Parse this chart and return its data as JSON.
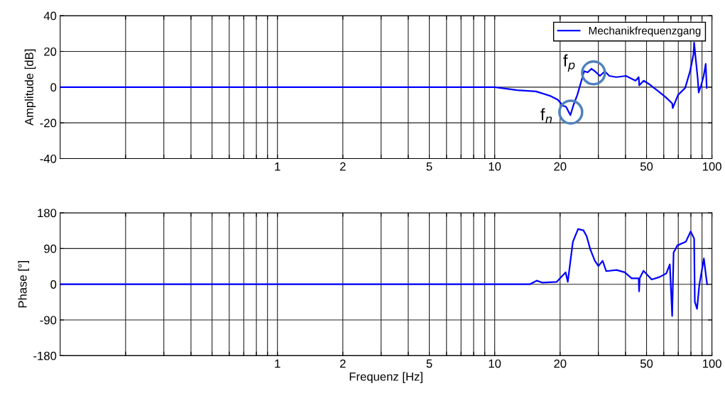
{
  "chart_data": [
    {
      "type": "line",
      "ylabel": "Amplitude [dB]",
      "legend": "top right",
      "grid": true,
      "log": "x",
      "xlim": [
        0.1,
        100
      ],
      "ylim": [
        -40,
        40
      ],
      "yticks": [
        -40,
        -20,
        0,
        20,
        40
      ],
      "xticks": [
        {
          "value": 0.2,
          "label": null
        },
        {
          "value": 0.3,
          "label": null
        },
        {
          "value": 0.4,
          "label": null
        },
        {
          "value": 0.5,
          "label": null
        },
        {
          "value": 0.6,
          "label": null
        },
        {
          "value": 0.7,
          "label": null
        },
        {
          "value": 0.8,
          "label": null
        },
        {
          "value": 0.9,
          "label": null
        },
        1,
        2,
        {
          "value": 3,
          "label": null
        },
        {
          "value": 4,
          "label": null
        },
        5,
        {
          "value": 6,
          "label": null
        },
        {
          "value": 7,
          "label": null
        },
        {
          "value": 8,
          "label": null
        },
        {
          "value": 9,
          "label": null
        },
        10,
        20,
        {
          "value": 30,
          "label": null
        },
        {
          "value": 40,
          "label": null
        },
        50,
        {
          "value": 60,
          "label": null
        },
        {
          "value": 70,
          "label": null
        },
        {
          "value": 80,
          "label": null
        },
        {
          "value": 90,
          "label": null
        },
        100
      ],
      "annotations": [
        {
          "text": "f$_{n}$",
          "x": 22.4,
          "y": -14
        },
        {
          "text": "f$_{p}$",
          "x": 28.5,
          "y": 8
        }
      ],
      "series": [
        {
          "name": "Mechanikfrequenzgang",
          "color": "#0000ff",
          "x": [
            0.1,
            0.5,
            1,
            2,
            5,
            10,
            12.7,
            15.5,
            18.1,
            19.5,
            20.6,
            21.3,
            22.3,
            23.1,
            24,
            24.9,
            25.8,
            26.8,
            27.9,
            28.9,
            30.5,
            32.1,
            33.7,
            36.3,
            40.2,
            44.5,
            46,
            46.3,
            48.5,
            51.5,
            56.8,
            61.3,
            65.6,
            66,
            69.8,
            75.3,
            79.3,
            82.2,
            82.8,
            84,
            86,
            86.9,
            89.1,
            91.6,
            93.6,
            94.6
          ],
          "values": [
            0,
            0,
            0,
            0,
            0,
            0,
            -1.7,
            -2.4,
            -5,
            -7,
            -10.4,
            -11,
            -15.7,
            -9.7,
            -4.4,
            2.3,
            8.9,
            8.3,
            10.3,
            8.9,
            6.3,
            8.9,
            6.3,
            5.6,
            6.3,
            3.6,
            5.6,
            1,
            3.6,
            1.6,
            -2.4,
            -5.7,
            -9.1,
            -11.7,
            -4.4,
            -0.4,
            8.9,
            18.3,
            24.9,
            17,
            4.9,
            -3,
            0.9,
            6.3,
            13,
            -0.4
          ]
        }
      ]
    },
    {
      "type": "line",
      "xlabel": "Frequenz [Hz]",
      "ylabel": "Phase [°]",
      "grid": true,
      "log": "x",
      "xlim": [
        0.1,
        100
      ],
      "ylim": [
        -180,
        180
      ],
      "yticks": [
        -180,
        -90,
        0,
        90,
        180
      ],
      "xticks": [
        {
          "value": 0.2,
          "label": null
        },
        {
          "value": 0.3,
          "label": null
        },
        {
          "value": 0.4,
          "label": null
        },
        {
          "value": 0.5,
          "label": null
        },
        {
          "value": 0.6,
          "label": null
        },
        {
          "value": 0.7,
          "label": null
        },
        {
          "value": 0.8,
          "label": null
        },
        {
          "value": 0.9,
          "label": null
        },
        1,
        2,
        {
          "value": 3,
          "label": null
        },
        {
          "value": 4,
          "label": null
        },
        5,
        {
          "value": 6,
          "label": null
        },
        {
          "value": 7,
          "label": null
        },
        {
          "value": 8,
          "label": null
        },
        {
          "value": 9,
          "label": null
        },
        10,
        20,
        {
          "value": 30,
          "label": null
        },
        {
          "value": 40,
          "label": null
        },
        50,
        {
          "value": 60,
          "label": null
        },
        {
          "value": 70,
          "label": null
        },
        {
          "value": 80,
          "label": null
        },
        {
          "value": 90,
          "label": null
        },
        100
      ],
      "series": [
        {
          "color": "#0000ff",
          "x": [
            0.1,
            0.5,
            1,
            2,
            5,
            10,
            14.5,
            15.6,
            16.6,
            19.3,
            21.2,
            21.7,
            22.9,
            24.2,
            25.6,
            26.5,
            27.5,
            28.9,
            30,
            31.4,
            32.6,
            36.4,
            39.7,
            42.7,
            46,
            46.2,
            46.5,
            48.4,
            52.8,
            57.3,
            61.6,
            64,
            65.6,
            66.6,
            69.4,
            75.8,
            79.8,
            82.8,
            83.4,
            85.4,
            87.4,
            91.8,
            93.9,
            95
          ],
          "values": [
            0,
            0,
            0,
            0,
            0,
            0,
            0,
            9,
            4,
            6,
            30,
            6,
            107,
            139,
            136,
            121,
            89,
            59,
            46,
            59,
            33,
            36,
            30,
            15,
            15,
            -18,
            15,
            34,
            12,
            18,
            27,
            50,
            -80,
            80,
            98,
            107,
            133,
            115,
            -44,
            -62,
            -3,
            65,
            21,
            0
          ]
        }
      ]
    }
  ]
}
